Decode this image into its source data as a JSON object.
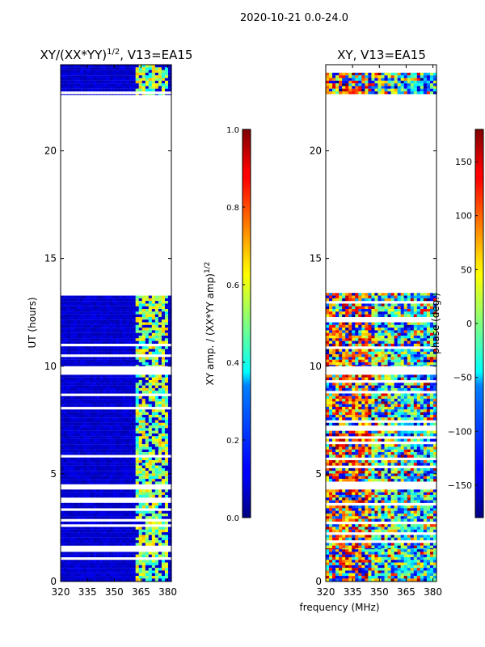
{
  "figure": {
    "suptitle": "2020-10-21 0.0-24.0",
    "xlabel": "frequency (MHz)"
  },
  "chart_data": [
    {
      "type": "heatmap",
      "title_main": "XY/(XX*YY)",
      "title_sup": "1/2",
      "title_tail": ", V13=EA15",
      "xlabel": "",
      "ylabel": "UT (hours)",
      "xlim": [
        320,
        382
      ],
      "ylim": [
        0,
        24
      ],
      "xticks": [
        320,
        335,
        350,
        365,
        380
      ],
      "yticks": [
        0,
        5,
        10,
        15,
        20
      ],
      "colormap": "jet",
      "colorbar": {
        "label": "XY amp. / (XX*YY amp)",
        "label_sup": "1/2",
        "range": [
          0.0,
          1.0
        ],
        "ticks": [
          "0.0",
          "0.2",
          "0.4",
          "0.6",
          "0.8",
          "1.0"
        ],
        "tick_values": [
          0.0,
          0.2,
          0.4,
          0.6,
          0.8,
          1.0
        ]
      },
      "data_blocks_ut_hours": [
        [
          0.0,
          1.5
        ],
        [
          1.5,
          9.6
        ],
        [
          10.0,
          13.4
        ],
        [
          22.6,
          24.0
        ]
      ],
      "active_freq_band_mhz": [
        362,
        380
      ],
      "typical_value": 0.05,
      "band_value": 0.5
    },
    {
      "type": "heatmap",
      "title": "XY, V13=EA15",
      "xlabel": "",
      "ylabel": "",
      "xlim": [
        320,
        382
      ],
      "ylim": [
        0,
        24
      ],
      "xticks": [
        320,
        335,
        350,
        365,
        380
      ],
      "yticks": [
        0,
        5,
        10,
        15,
        20
      ],
      "colormap": "jet",
      "colorbar": {
        "label": "phase (deg.)",
        "range": [
          -180,
          180
        ],
        "ticks": [
          "150",
          "100",
          "50",
          "0",
          "−50",
          "−100",
          "−150"
        ],
        "tick_values": [
          150,
          100,
          50,
          0,
          -50,
          -100,
          -150
        ]
      },
      "data_blocks_ut_hours": [
        [
          0.0,
          1.5
        ],
        [
          1.5,
          9.6
        ],
        [
          10.0,
          13.4
        ],
        [
          22.6,
          24.0
        ]
      ]
    }
  ]
}
